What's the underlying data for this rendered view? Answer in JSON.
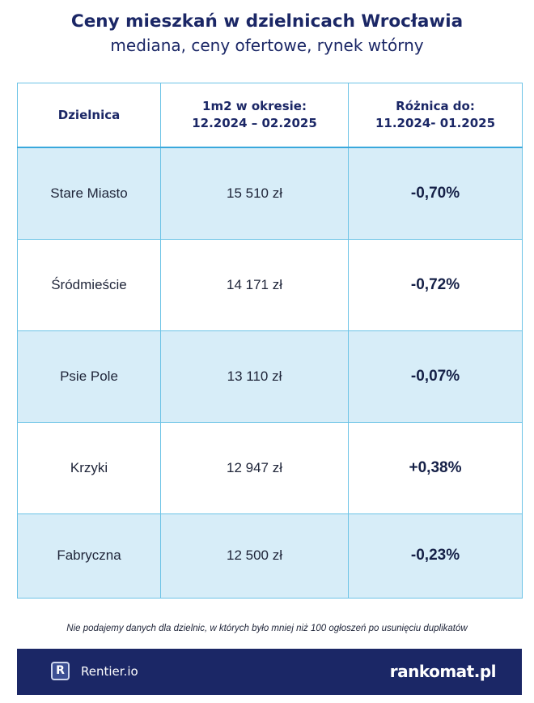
{
  "header": {
    "title": "Ceny mieszkań w dzielnicach Wrocławia",
    "subtitle": "mediana, ceny ofertowe, rynek wtórny"
  },
  "table": {
    "columns": [
      "Dzielnica",
      "1m2 w okresie: 12.2024 – 02.2025",
      "Różnica do: 11.2024- 01.2025"
    ],
    "col2_line1": "1m2 w okresie:",
    "col2_line2": "12.2024 – 02.2025",
    "col3_line1": "Różnica do:",
    "col3_line2": "11.2024- 01.2025",
    "rows": [
      {
        "district": "Stare Miasto",
        "price": "15 510 zł",
        "diff": "-0,70%"
      },
      {
        "district": "Śródmieście",
        "price": "14 171 zł",
        "diff": "-0,72%"
      },
      {
        "district": "Psie Pole",
        "price": "13 110 zł",
        "diff": "-0,07%"
      },
      {
        "district": "Krzyki",
        "price": "12 947 zł",
        "diff": "+0,38%"
      },
      {
        "district": "Fabryczna",
        "price": "12 500 zł",
        "diff": "-0,23%"
      }
    ]
  },
  "note": "Nie podajemy danych dla dzielnic, w których było mniej niż 100 ogłoszeń po usunięciu duplikatów",
  "footer": {
    "left_logo_letter": "R",
    "left_brand": "Rentier.io",
    "right_brand": "rankomat.pl"
  },
  "colors": {
    "navy": "#1b2766",
    "row_highlight": "#d7edf8",
    "grid_line": "#6cc3e6"
  }
}
